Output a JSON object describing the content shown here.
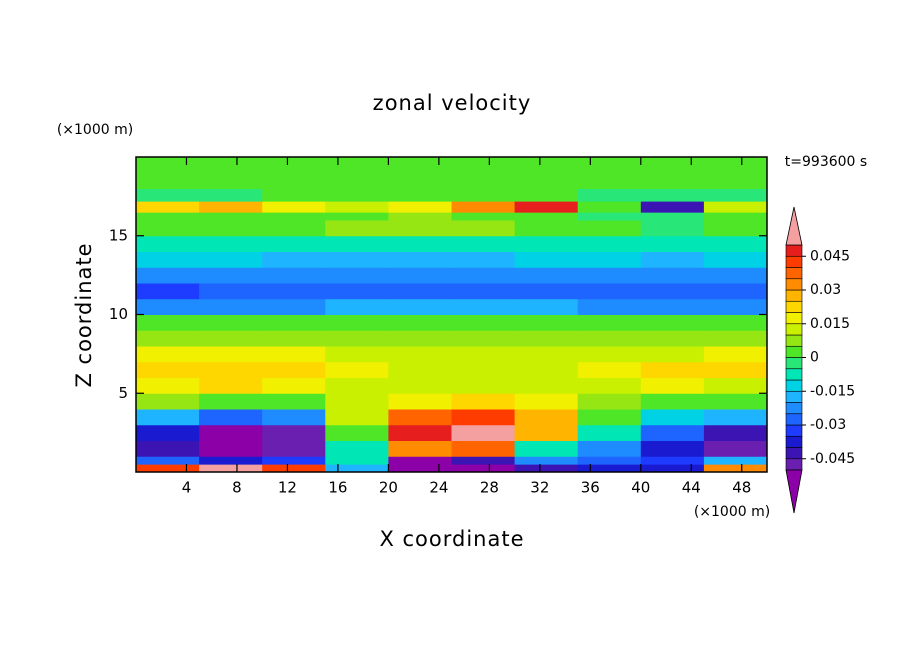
{
  "chart_data": {
    "type": "contour",
    "title": "zonal velocity",
    "x_label": "X coordinate",
    "y_label": "Z coordinate",
    "x_unit": "(×1000 m)",
    "y_unit": "(×1000 m)",
    "annotation": "t=993600 s",
    "xlim": [
      0,
      50
    ],
    "ylim": [
      0,
      20
    ],
    "xticks": [
      4,
      8,
      12,
      16,
      20,
      24,
      28,
      32,
      36,
      40,
      44,
      48
    ],
    "yticks": [
      5,
      10,
      15
    ],
    "xbins": [
      0,
      5,
      10,
      15,
      20,
      25,
      30,
      35,
      40,
      45,
      50
    ],
    "ybins": [
      0,
      0.5,
      1,
      2,
      3,
      4,
      5,
      6,
      7,
      8,
      9,
      10,
      11,
      12,
      13,
      14,
      15,
      16,
      16.5,
      17.2,
      18,
      20
    ],
    "values": [
      [
        0.04,
        0.05,
        0.04,
        -0.02,
        -0.055,
        -0.055,
        -0.045,
        -0.04,
        -0.04,
        0.03
      ],
      [
        -0.03,
        -0.04,
        -0.035,
        -0.01,
        -0.052,
        -0.045,
        -0.025,
        -0.03,
        -0.035,
        -0.02
      ],
      [
        -0.045,
        -0.055,
        -0.05,
        -0.01,
        0.03,
        0.035,
        -0.01,
        -0.025,
        -0.04,
        -0.05
      ],
      [
        -0.04,
        -0.055,
        -0.05,
        0.0,
        0.045,
        0.052,
        0.025,
        -0.01,
        -0.03,
        -0.045
      ],
      [
        -0.02,
        -0.03,
        -0.025,
        0.01,
        0.035,
        0.04,
        0.025,
        0.0,
        -0.015,
        -0.02
      ],
      [
        0.005,
        0.0,
        0.0,
        0.012,
        0.018,
        0.02,
        0.015,
        0.005,
        0.0,
        0.0
      ],
      [
        0.018,
        0.02,
        0.017,
        0.013,
        0.012,
        0.012,
        0.01,
        0.012,
        0.015,
        0.013
      ],
      [
        0.022,
        0.022,
        0.02,
        0.015,
        0.012,
        0.01,
        0.01,
        0.018,
        0.022,
        0.02
      ],
      [
        0.017,
        0.018,
        0.017,
        0.014,
        0.012,
        0.01,
        0.01,
        0.012,
        0.014,
        0.015
      ],
      [
        0.008,
        0.008,
        0.008,
        0.008,
        0.007,
        0.006,
        0.005,
        0.005,
        0.006,
        0.007
      ],
      [
        0.0,
        0.001,
        0.001,
        0.002,
        0.002,
        0.002,
        0.001,
        0.0,
        0.0,
        0.0
      ],
      [
        -0.025,
        -0.025,
        -0.022,
        -0.02,
        -0.02,
        -0.02,
        -0.02,
        -0.022,
        -0.025,
        -0.025
      ],
      [
        -0.035,
        -0.028,
        -0.028,
        -0.027,
        -0.027,
        -0.027,
        -0.027,
        -0.03,
        -0.03,
        -0.027
      ],
      [
        -0.022,
        -0.022,
        -0.022,
        -0.022,
        -0.022,
        -0.022,
        -0.022,
        -0.022,
        -0.022,
        -0.022
      ],
      [
        -0.015,
        -0.015,
        -0.016,
        -0.016,
        -0.017,
        -0.016,
        -0.015,
        -0.015,
        -0.016,
        -0.015
      ],
      [
        -0.007,
        -0.006,
        -0.006,
        -0.007,
        -0.008,
        -0.007,
        -0.007,
        -0.008,
        -0.009,
        -0.008
      ],
      [
        0.003,
        0.004,
        0.003,
        0.005,
        0.008,
        0.006,
        0.002,
        0.0,
        -0.002,
        0.001
      ],
      [
        0.002,
        0.003,
        0.004,
        0.004,
        0.006,
        0.004,
        0.002,
        -0.003,
        -0.004,
        0.0
      ],
      [
        0.02,
        0.025,
        0.015,
        0.012,
        0.015,
        0.03,
        0.045,
        0.0,
        -0.045,
        0.01
      ],
      [
        -0.002,
        -0.001,
        0.0,
        0.0,
        0.001,
        0.002,
        0.0,
        -0.003,
        -0.002,
        -0.001
      ],
      [
        0.001,
        0.002,
        0.001,
        0.002,
        0.002,
        0.001,
        0.001,
        0.002,
        0.001,
        0.001
      ]
    ],
    "levels": [
      -0.05,
      -0.045,
      -0.04,
      -0.035,
      -0.03,
      -0.025,
      -0.02,
      -0.015,
      -0.01,
      -0.005,
      0,
      0.005,
      0.01,
      0.015,
      0.02,
      0.025,
      0.03,
      0.035,
      0.04,
      0.045,
      0.05
    ],
    "colors": [
      "#8c00a8",
      "#6a1fb0",
      "#3c14b4",
      "#1a1ad0",
      "#1e3cff",
      "#1e64ff",
      "#1e8cff",
      "#1eb4ff",
      "#00d2e6",
      "#00e6b4",
      "#28e678",
      "#50e628",
      "#96e614",
      "#c8f000",
      "#f0f000",
      "#ffd700",
      "#ffb400",
      "#ff8c00",
      "#ff6400",
      "#ff3c00",
      "#e61e1e",
      "#f5a0a0"
    ],
    "cbar_ticks": [
      0.045,
      0.03,
      0.015,
      0,
      -0.015,
      -0.03,
      -0.045
    ]
  }
}
